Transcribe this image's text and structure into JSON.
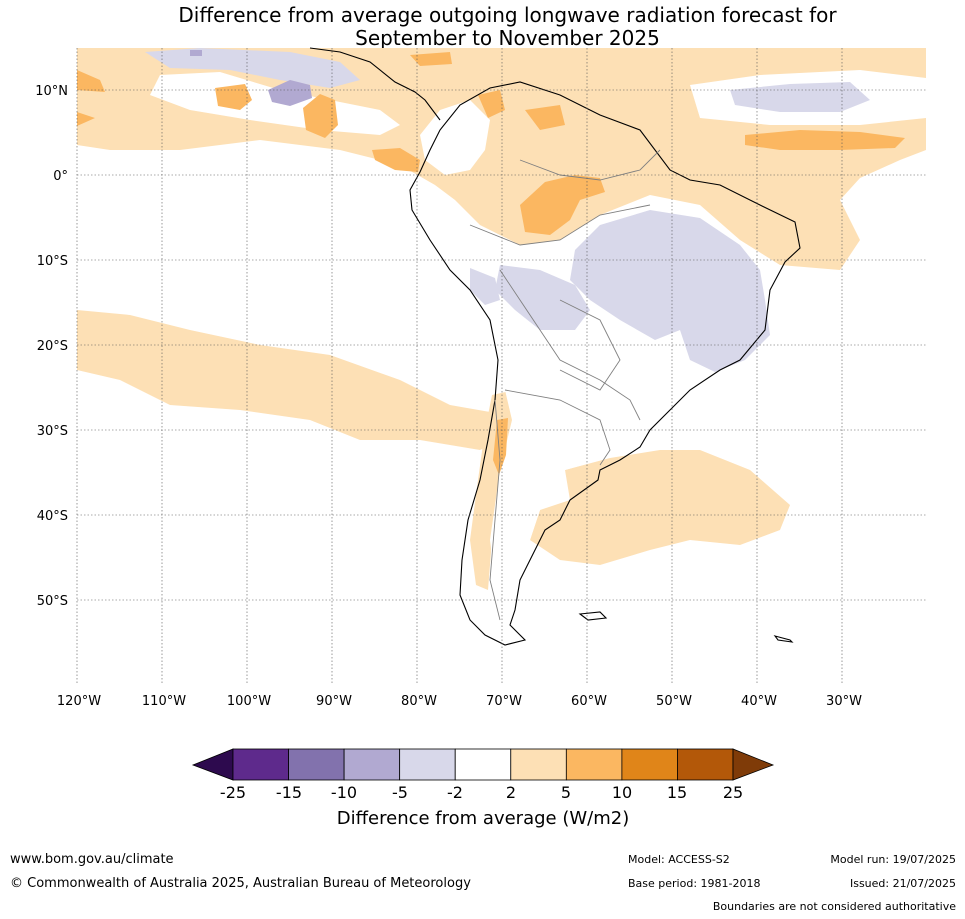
{
  "title_line1": "Difference from average outgoing longwave radiation forecast for",
  "title_line2": "September to November 2025",
  "lat_labels": [
    "10°N",
    "0°",
    "10°S",
    "20°S",
    "30°S",
    "40°S",
    "50°S"
  ],
  "lon_labels": [
    "120°W",
    "110°W",
    "100°W",
    "90°W",
    "80°W",
    "70°W",
    "60°W",
    "50°W",
    "40°W",
    "30°W"
  ],
  "colorbar": {
    "tick_labels": [
      "-25",
      "-15",
      "-10",
      "-5",
      "-2",
      "2",
      "5",
      "10",
      "15",
      "25"
    ],
    "colors": [
      "#5e2a8c",
      "#8272ad",
      "#b1a9d1",
      "#d8d8ea",
      "#ffffff",
      "#fde0b5",
      "#fbb761",
      "#e08519",
      "#b35809"
    ],
    "extend_low_color": "#2d0a4e",
    "extend_high_color": "#7f3b08",
    "title": "Difference from average (W/m2)"
  },
  "footer": {
    "url": "www.bom.gov.au/climate",
    "copyright": "© Commonwealth of Australia 2025, Australian Bureau of Meteorology",
    "model": "Model: ACCESS-S2",
    "base_period": "Base period: 1981-2018",
    "model_run": "Model run: 19/07/2025",
    "issued": "Issued: 21/07/2025",
    "disclaimer": "Boundaries are not considered authoritative"
  }
}
